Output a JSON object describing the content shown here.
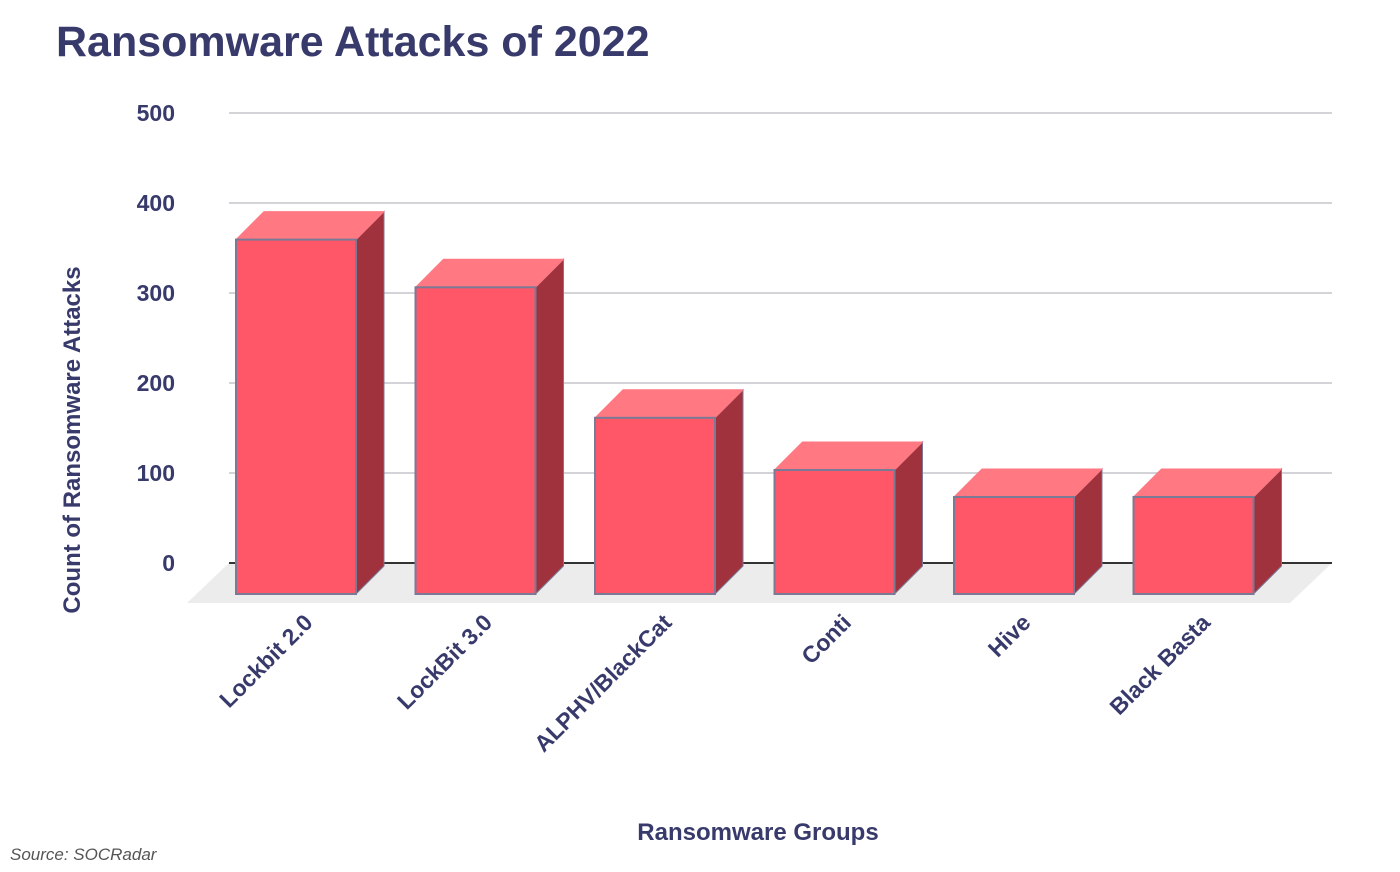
{
  "chart_data": {
    "type": "bar",
    "title": "Ransomware Attacks of 2022",
    "xlabel": "Ransomware Groups",
    "ylabel": "Count of Ransomware Attacks",
    "categories": [
      "Lockbit 2.0",
      "LockBit 3.0",
      "ALPHV/BlackCat",
      "Conti",
      "Hive",
      "Black Basta"
    ],
    "values": [
      386,
      333,
      188,
      130,
      100,
      100
    ],
    "ylim": [
      0,
      500
    ],
    "yticks": [
      "0",
      "100",
      "200",
      "300",
      "400",
      "500"
    ],
    "grid": true,
    "three_d": true,
    "colors": {
      "bar_front": "#ff5767",
      "bar_top": "#ff7882",
      "bar_side": "#a0323d",
      "bar_outline": "#7a7a96",
      "text": "#373a6a",
      "grid": "#d4d4d8",
      "floor": "#ececec"
    }
  },
  "source": "Source: SOCRadar"
}
